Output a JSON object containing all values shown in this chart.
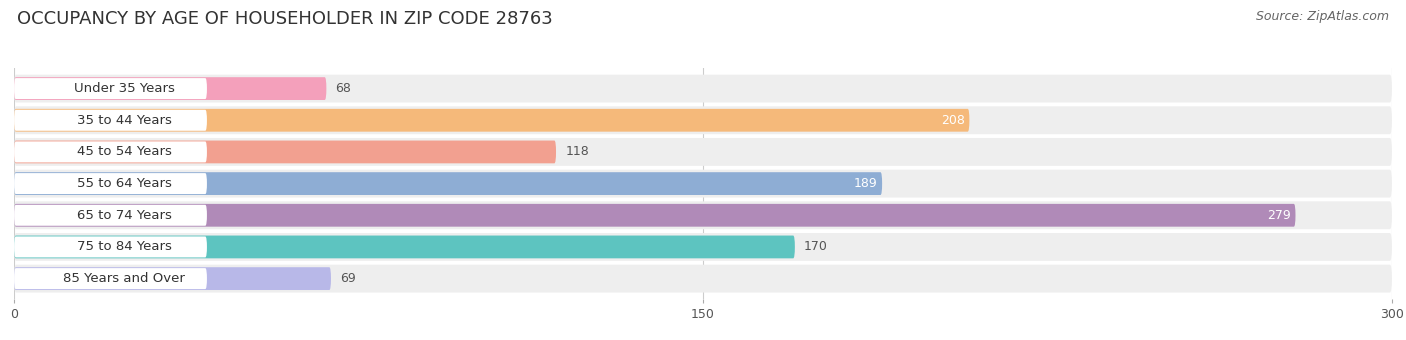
{
  "title": "OCCUPANCY BY AGE OF HOUSEHOLDER IN ZIP CODE 28763",
  "source": "Source: ZipAtlas.com",
  "categories": [
    "Under 35 Years",
    "35 to 44 Years",
    "45 to 54 Years",
    "55 to 64 Years",
    "65 to 74 Years",
    "75 to 84 Years",
    "85 Years and Over"
  ],
  "values": [
    68,
    208,
    118,
    189,
    279,
    170,
    69
  ],
  "bar_colors": [
    "#f4a0bb",
    "#f5b97a",
    "#f2a090",
    "#8eadd4",
    "#b08ab8",
    "#5dc4c0",
    "#b8b8e8"
  ],
  "bar_bg_color": "#eeeeee",
  "xlim": [
    0,
    300
  ],
  "xticks": [
    0,
    150,
    300
  ],
  "title_fontsize": 13,
  "source_fontsize": 9,
  "bar_label_fontsize": 9,
  "category_fontsize": 9.5,
  "value_label_dark_color": "#555555",
  "value_label_white_color": "#ffffff",
  "value_label_white_indices": [
    1,
    3,
    4
  ],
  "figsize": [
    14.06,
    3.4
  ],
  "dpi": 100,
  "bg_color": "#ffffff"
}
